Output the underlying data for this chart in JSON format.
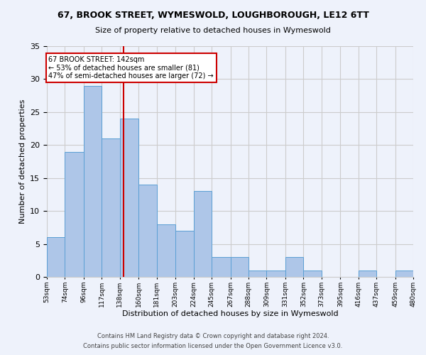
{
  "title": "67, BROOK STREET, WYMESWOLD, LOUGHBOROUGH, LE12 6TT",
  "subtitle": "Size of property relative to detached houses in Wymeswold",
  "xlabel": "Distribution of detached houses by size in Wymeswold",
  "ylabel": "Number of detached properties",
  "footnote1": "Contains HM Land Registry data © Crown copyright and database right 2024.",
  "footnote2": "Contains public sector information licensed under the Open Government Licence v3.0.",
  "annotation_line1": "67 BROOK STREET: 142sqm",
  "annotation_line2": "← 53% of detached houses are smaller (81)",
  "annotation_line3": "47% of semi-detached houses are larger (72) →",
  "property_size": 142,
  "bar_edges": [
    53,
    74,
    96,
    117,
    138,
    160,
    181,
    203,
    224,
    245,
    267,
    288,
    309,
    331,
    352,
    373,
    395,
    416,
    437,
    459,
    480
  ],
  "bar_values": [
    6,
    19,
    29,
    21,
    24,
    14,
    8,
    7,
    13,
    3,
    3,
    1,
    1,
    3,
    1,
    0,
    0,
    1,
    0,
    1
  ],
  "bar_color": "#aec6e8",
  "bar_edge_color": "#5a9fd4",
  "vline_color": "#cc0000",
  "vline_x": 142,
  "annotation_box_color": "#cc0000",
  "background_color": "#eef2fb",
  "grid_color": "#cccccc",
  "ylim": [
    0,
    35
  ],
  "yticks": [
    0,
    5,
    10,
    15,
    20,
    25,
    30,
    35
  ]
}
